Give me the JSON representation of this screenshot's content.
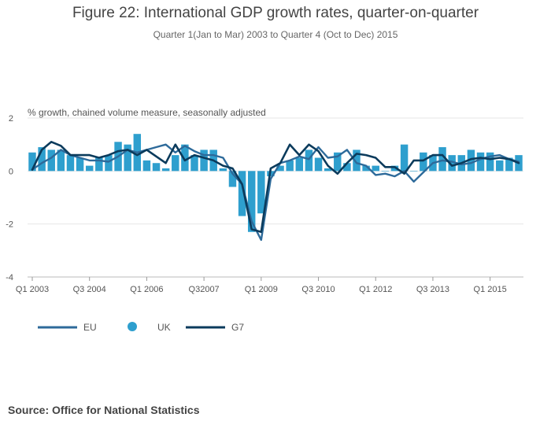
{
  "chart_data": {
    "type": "bar+line",
    "title": "Figure 22: International GDP growth rates, quarter-on-quarter",
    "subtitle": "Quarter 1(Jan to Mar) 2003 to Quarter 4 (Oct to Dec) 2015",
    "ylabel": "% growth, chained volume measure, seasonally adjusted",
    "ylim": [
      -4,
      2
    ],
    "yticks": [
      2,
      0,
      -2,
      -4
    ],
    "x_tick_labels": [
      {
        "index": 0,
        "label": "Q1 2003"
      },
      {
        "index": 6,
        "label": "Q3 2004"
      },
      {
        "index": 12,
        "label": "Q1 2006"
      },
      {
        "index": 18,
        "label": "Q32007"
      },
      {
        "index": 24,
        "label": "Q1 2009"
      },
      {
        "index": 30,
        "label": "Q3 2010"
      },
      {
        "index": 36,
        "label": "Q1 2012"
      },
      {
        "index": 42,
        "label": "Q3 2013"
      },
      {
        "index": 48,
        "label": "Q1 2015"
      }
    ],
    "n_quarters": 52,
    "series": [
      {
        "name": "EU",
        "type": "line",
        "color": "#2d6a9a",
        "values": [
          0.05,
          0.3,
          0.5,
          0.8,
          0.6,
          0.5,
          0.4,
          0.4,
          0.35,
          0.55,
          0.8,
          0.7,
          0.8,
          0.9,
          1.0,
          0.7,
          0.95,
          0.75,
          0.6,
          0.6,
          0.5,
          -0.1,
          -0.5,
          -1.9,
          -2.6,
          -0.3,
          0.3,
          0.4,
          0.55,
          0.45,
          0.9,
          0.5,
          0.55,
          0.8,
          0.3,
          0.2,
          -0.15,
          -0.1,
          -0.2,
          0.0,
          -0.4,
          -0.05,
          0.3,
          0.4,
          0.35,
          0.25,
          0.3,
          0.45,
          0.55,
          0.6,
          0.45,
          0.35
        ]
      },
      {
        "name": "UK",
        "type": "bar",
        "color": "#2e9fce",
        "values": [
          0.7,
          0.9,
          0.8,
          0.8,
          0.6,
          0.5,
          0.2,
          0.5,
          0.6,
          1.1,
          1.0,
          1.4,
          0.4,
          0.3,
          0.1,
          0.6,
          1.0,
          0.6,
          0.8,
          0.8,
          0.1,
          -0.6,
          -1.7,
          -2.3,
          -1.6,
          -0.2,
          0.2,
          0.4,
          0.5,
          0.8,
          0.5,
          0.1,
          0.7,
          0.3,
          0.8,
          0.2,
          0.2,
          0.0,
          0.2,
          1.0,
          0.0,
          0.7,
          0.6,
          0.9,
          0.6,
          0.6,
          0.8,
          0.7,
          0.7,
          0.4,
          0.5,
          0.6
        ]
      },
      {
        "name": "G7",
        "type": "line",
        "color": "#0b3b5c",
        "values": [
          0.05,
          0.8,
          1.1,
          0.95,
          0.6,
          0.6,
          0.6,
          0.5,
          0.6,
          0.75,
          0.8,
          0.6,
          0.8,
          0.55,
          0.3,
          1.0,
          0.4,
          0.6,
          0.5,
          0.4,
          0.2,
          0.1,
          -0.5,
          -2.2,
          -2.3,
          0.1,
          0.3,
          1.0,
          0.6,
          1.0,
          0.75,
          0.2,
          -0.1,
          0.3,
          0.65,
          0.6,
          0.5,
          0.15,
          0.15,
          -0.1,
          0.4,
          0.4,
          0.6,
          0.6,
          0.2,
          0.3,
          0.45,
          0.5,
          0.45,
          0.5,
          0.45,
          0.3
        ]
      }
    ],
    "legend": [
      "EU",
      "UK",
      "G7"
    ],
    "legend_position": "bottom-left",
    "grid": true
  },
  "source": "Source: Office for National Statistics"
}
